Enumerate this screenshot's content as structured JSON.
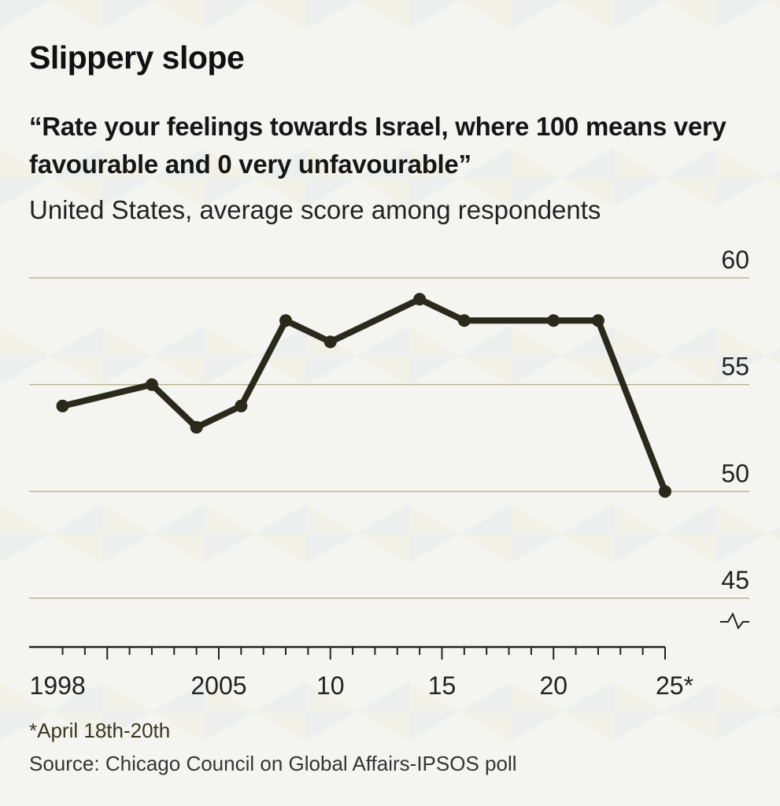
{
  "chart_data": {
    "type": "line",
    "title": "Slippery slope",
    "subtitle": "“Rate your feelings towards Israel, where 100 means very favourable and 0 very unfavourable”",
    "ylabel": "United States, average score among respondents",
    "xlabel": "",
    "x": [
      1998,
      2002,
      2004,
      2006,
      2008,
      2010,
      2014,
      2016,
      2020,
      2022,
      2025
    ],
    "series": [
      {
        "name": "Average score",
        "values": [
          54,
          55,
          53,
          54,
          58,
          57,
          59,
          58,
          58,
          58,
          50
        ]
      }
    ],
    "xlim": [
      1996.5,
      2025
    ],
    "ylim": [
      45,
      60
    ],
    "yticks": [
      {
        "value": 60,
        "label": "60"
      },
      {
        "value": 55,
        "label": "55"
      },
      {
        "value": 50,
        "label": "50"
      },
      {
        "value": 45,
        "label": "45"
      }
    ],
    "xticks_major": [
      {
        "value": 1998,
        "label": "1998"
      },
      {
        "value": 2005,
        "label": "2005"
      },
      {
        "value": 2010,
        "label": "10"
      },
      {
        "value": 2015,
        "label": "15"
      },
      {
        "value": 2020,
        "label": "20"
      },
      {
        "value": 2025,
        "label": "25*"
      }
    ],
    "xticks_minor_range": [
      1998,
      2025
    ],
    "y_axis_break": true,
    "grid": true,
    "legend": "none",
    "colors": {
      "line": "#2a2a1c",
      "grid": "#b8b58e",
      "axis": "#222222"
    }
  },
  "notes": {
    "footnote": "*April 18th-20th",
    "source": "Source: Chicago Council on Global Affairs-IPSOS poll"
  }
}
